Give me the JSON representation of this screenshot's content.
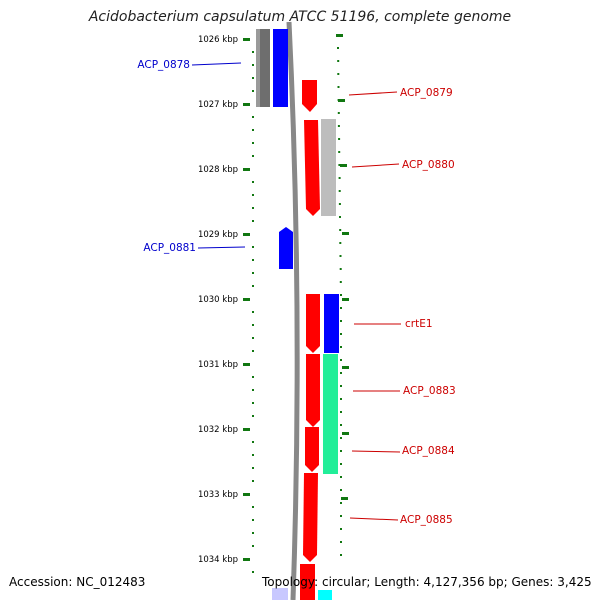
{
  "title": "Acidobacterium capsulatum ATCC 51196, complete genome",
  "footer": {
    "accession": "Accession: NC_012483",
    "summary": "Topology: circular; Length: 4,127,356 bp; Genes: 3,425"
  },
  "ticks": [
    "1026 kbp",
    "1027 kbp",
    "1028 kbp",
    "1029 kbp",
    "1030 kbp",
    "1031 kbp",
    "1032 kbp",
    "1033 kbp",
    "1034 kbp"
  ],
  "colors": {
    "forward_label": "#0000cc",
    "reverse_label": "#cc0000",
    "red": "#ff0000",
    "blue": "#0000ff",
    "gray": "#6e6e6e",
    "lightgray": "#bdbdbd",
    "green": "#22ee99",
    "ruler": "#117711"
  },
  "labels": {
    "acp0878": "ACP_0878",
    "acp0879": "ACP_0879",
    "acp0880": "ACP_0880",
    "acp0881": "ACP_0881",
    "crte1": "crtE1",
    "acp0883": "ACP_0883",
    "acp0884": "ACP_0884",
    "acp0885": "ACP_0885"
  }
}
